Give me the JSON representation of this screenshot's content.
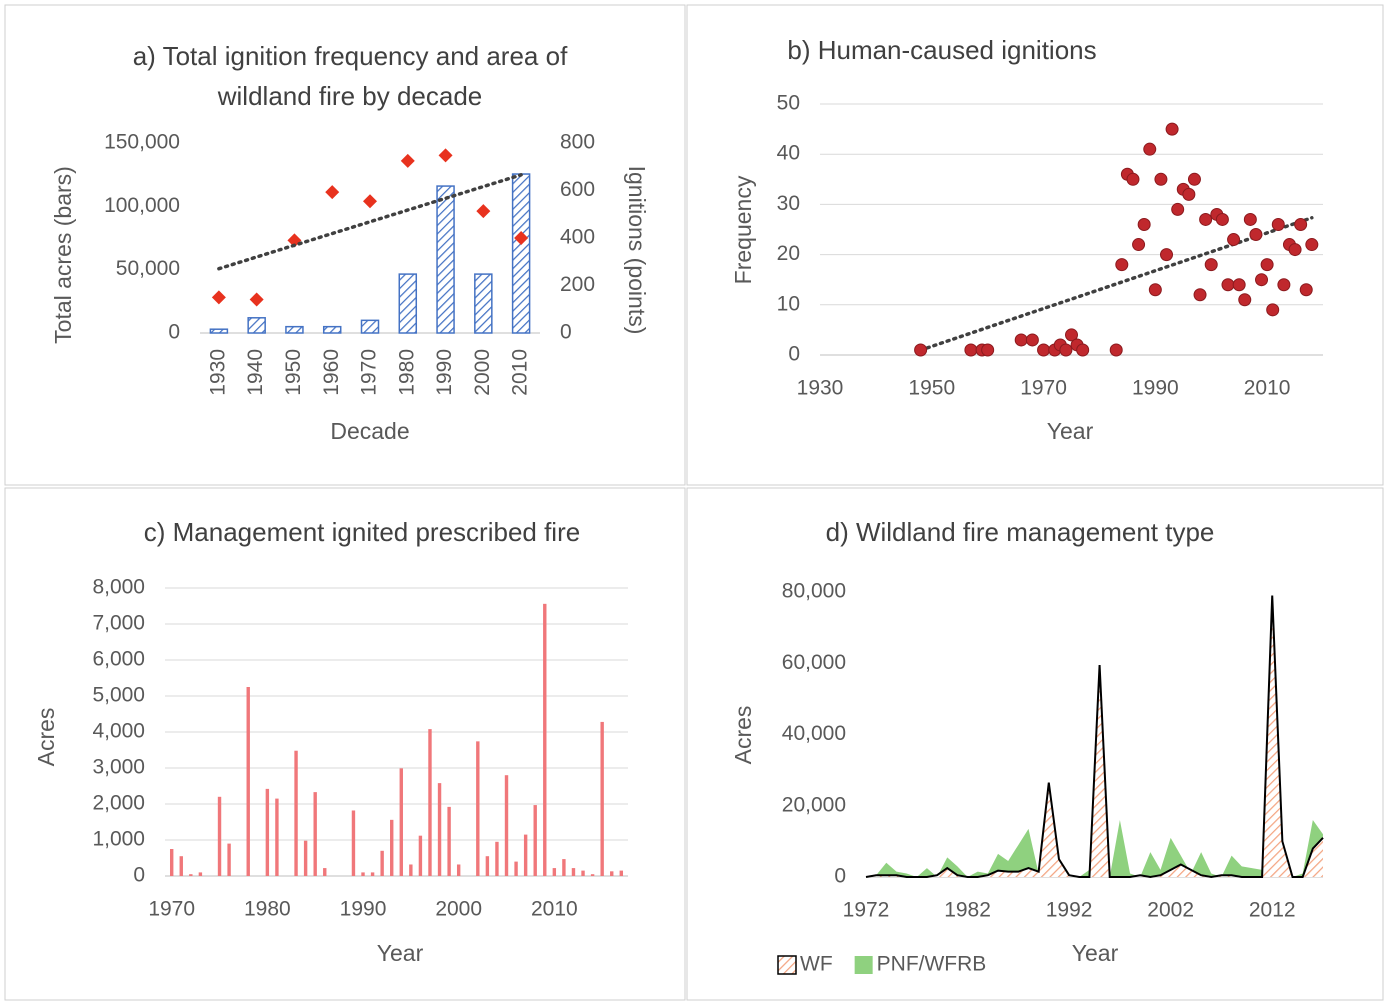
{
  "chart_data": [
    {
      "type": "bar",
      "title": [
        "a) Total ignition frequency and area of",
        "wildland fire by decade"
      ],
      "x_label": "Decade",
      "y_label": "Total acres (bars)",
      "y2_label": "Ignitions (points)",
      "categories": [
        "1930",
        "1940",
        "1950",
        "1960",
        "1970",
        "1980",
        "1990",
        "2000",
        "2010"
      ],
      "series": [
        {
          "color": "#4472c4",
          "hatch": true,
          "values": [
            3000,
            12000,
            5000,
            5000,
            10000,
            46500,
            116000,
            46500,
            125500
          ]
        },
        {
          "type": "scatter",
          "marker": "diamond",
          "axis": "y2",
          "color": "#e8321e",
          "trendline": true,
          "values": [
            150,
            141,
            390,
            593,
            555,
            725,
            748,
            513,
            400
          ]
        }
      ],
      "ylim": [
        0,
        150000
      ],
      "yticks": [
        0,
        {
          "value": 50000,
          "label": "50,000"
        },
        {
          "value": 100000,
          "label": "100,000"
        },
        {
          "value": 150000,
          "label": "150,000"
        }
      ],
      "y2lim": [
        0,
        800
      ],
      "y2ticks": [
        0,
        200,
        400,
        600,
        800
      ],
      "grid": false
    },
    {
      "type": "scatter",
      "title": "b) Human-caused ignitions",
      "x_label": "Year",
      "y_label": "Frequency",
      "x": [
        1948,
        1957,
        1959,
        1960,
        1966,
        1968,
        1970,
        1972,
        1973,
        1974,
        1975,
        1976,
        1977,
        1983,
        1984,
        1985,
        1986,
        1987,
        1988,
        1989,
        1990,
        1991,
        1992,
        1993,
        1994,
        1995,
        1996,
        1997,
        1998,
        1999,
        2000,
        2001,
        2002,
        2003,
        2004,
        2005,
        2006,
        2007,
        2008,
        2009,
        2010,
        2011,
        2012,
        2013,
        2014,
        2015,
        2016,
        2017,
        2018
      ],
      "values": [
        1,
        1,
        1,
        1,
        3,
        3,
        1,
        1,
        2,
        1,
        4,
        2,
        1,
        1,
        18,
        36,
        35,
        22,
        26,
        41,
        13,
        35,
        20,
        45,
        29,
        33,
        32,
        35,
        12,
        27,
        18,
        28,
        27,
        14,
        23,
        14,
        11,
        27,
        24,
        15,
        18,
        9,
        26,
        14,
        22,
        21,
        26,
        13,
        22
      ],
      "color": "#c0282d",
      "trendline": true,
      "xlim": [
        1930,
        2020
      ],
      "xticks": [
        1930,
        1950,
        1970,
        1990,
        2010
      ],
      "ylim": [
        0,
        50
      ],
      "yticks": [
        0,
        10,
        20,
        30,
        40,
        50
      ],
      "grid": true
    },
    {
      "type": "bar",
      "title": "c) Management ignited prescribed fire",
      "x_label": "Year",
      "y_label": "Acres",
      "x": [
        1970,
        1971,
        1972,
        1973,
        1974,
        1975,
        1976,
        1977,
        1978,
        1979,
        1980,
        1981,
        1982,
        1983,
        1984,
        1985,
        1986,
        1987,
        1988,
        1989,
        1990,
        1991,
        1992,
        1993,
        1994,
        1995,
        1996,
        1997,
        1998,
        1999,
        2000,
        2001,
        2002,
        2003,
        2004,
        2005,
        2006,
        2007,
        2008,
        2009,
        2010,
        2011,
        2012,
        2013,
        2014,
        2015,
        2016,
        2017
      ],
      "values": [
        750,
        550,
        50,
        100,
        0,
        2200,
        900,
        0,
        5250,
        0,
        2420,
        2150,
        0,
        3480,
        980,
        2330,
        220,
        0,
        0,
        1820,
        100,
        100,
        700,
        1560,
        2990,
        320,
        1120,
        4080,
        2580,
        1920,
        320,
        0,
        3740,
        550,
        950,
        2800,
        400,
        1150,
        1970,
        7560,
        220,
        470,
        220,
        150,
        50,
        4280,
        130,
        150
      ],
      "color": "#f0777a",
      "xlim": [
        1969.3,
        2017.7
      ],
      "xticks": [
        1970,
        1980,
        1990,
        2000,
        2010
      ],
      "ylim": [
        0,
        8000
      ],
      "yticks": [
        0,
        {
          "value": 1000,
          "label": "1,000"
        },
        {
          "value": 2000,
          "label": "2,000"
        },
        {
          "value": 3000,
          "label": "3,000"
        },
        {
          "value": 4000,
          "label": "4,000"
        },
        {
          "value": 5000,
          "label": "5,000"
        },
        {
          "value": 6000,
          "label": "6,000"
        },
        {
          "value": 7000,
          "label": "7,000"
        },
        {
          "value": 8000,
          "label": "8,000"
        }
      ],
      "grid": true
    },
    {
      "type": "area",
      "title": "d) Wildland fire management type",
      "x_label": "Year",
      "y_label": "Acres",
      "x": [
        1972,
        1973,
        1974,
        1975,
        1976,
        1977,
        1978,
        1979,
        1980,
        1981,
        1982,
        1983,
        1984,
        1985,
        1986,
        1987,
        1988,
        1989,
        1990,
        1991,
        1992,
        1993,
        1994,
        1995,
        1996,
        1997,
        1998,
        1999,
        2000,
        2001,
        2002,
        2003,
        2004,
        2005,
        2006,
        2007,
        2008,
        2009,
        2010,
        2011,
        2012,
        2013,
        2014,
        2015,
        2016,
        2017
      ],
      "series": [
        {
          "name": "WF",
          "color": "#f4a582",
          "hatch": true,
          "outline": "#000000",
          "values": [
            0,
            500,
            500,
            500,
            0,
            0,
            0,
            500,
            2500,
            500,
            0,
            0,
            500,
            1800,
            1500,
            1500,
            2500,
            1500,
            26500,
            5000,
            500,
            0,
            0,
            59500,
            0,
            0,
            0,
            500,
            0,
            500,
            2000,
            3500,
            2000,
            500,
            0,
            500,
            500,
            0,
            0,
            0,
            79000,
            10000,
            0,
            0,
            8000,
            11000
          ]
        },
        {
          "name": "PNF/WFRB",
          "color": "#8fd17f",
          "values": [
            0,
            500,
            4000,
            1500,
            1000,
            0,
            2500,
            0,
            5500,
            3000,
            0,
            1500,
            1000,
            6500,
            4500,
            9000,
            13500,
            1000,
            1500,
            500,
            0,
            0,
            2000,
            1000,
            0,
            16000,
            1000,
            0,
            7000,
            2000,
            11000,
            6000,
            1000,
            7000,
            1000,
            0,
            6000,
            3000,
            2500,
            2000,
            0,
            0,
            0,
            1000,
            16000,
            12000
          ]
        }
      ],
      "xlim": [
        1972,
        2017
      ],
      "xticks": [
        1972,
        1982,
        1992,
        2002,
        2012
      ],
      "ylim": [
        0,
        80000
      ],
      "yticks": [
        0,
        {
          "value": 20000,
          "label": "20,000"
        },
        {
          "value": 40000,
          "label": "40,000"
        },
        {
          "value": 60000,
          "label": "60,000"
        },
        {
          "value": 80000,
          "label": "80,000"
        }
      ],
      "grid": false,
      "legend": "bottom-left"
    }
  ]
}
